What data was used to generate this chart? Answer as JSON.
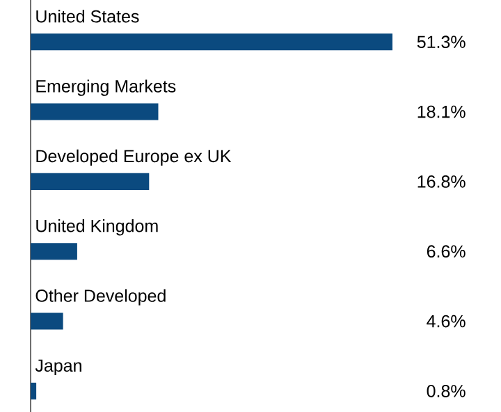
{
  "chart_data": {
    "type": "bar",
    "orientation": "horizontal",
    "categories": [
      "United States",
      "Emerging Markets",
      "Developed Europe ex UK",
      "United Kingdom",
      "Other Developed",
      "Japan"
    ],
    "values": [
      51.3,
      18.1,
      16.8,
      6.6,
      4.6,
      0.8
    ],
    "value_labels": [
      "51.3%",
      "18.1%",
      "16.8%",
      "6.6%",
      "4.6%",
      "0.8%"
    ],
    "color": "#0b4a7f"
  }
}
